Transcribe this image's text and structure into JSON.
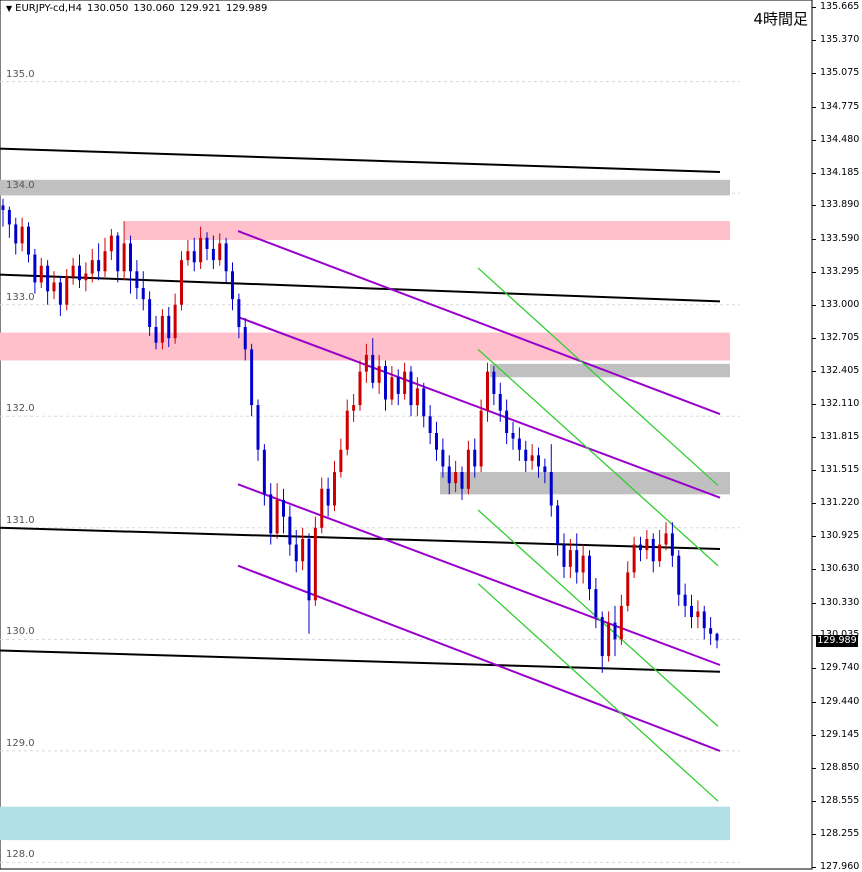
{
  "window": {
    "symbol_info": "EURJPY-cd,H4",
    "ohlc": [
      "130.050",
      "130.060",
      "129.921",
      "129.989"
    ],
    "timeframe_label": "4時間足",
    "current_price": "129.989"
  },
  "colors": {
    "background": "#ffffff",
    "bull_candle": "#cc0000",
    "bear_candle": "#0000cc",
    "channel_purple": "#9900cc",
    "channel_green": "#33cc33",
    "trend_black": "#000000",
    "zone_pink": "#ffc0cb",
    "zone_gray": "#c0c0c0",
    "zone_cyan": "#b0dfe5",
    "grid": "#d8d8d8"
  },
  "price_axis": {
    "ticks": [
      "135.665",
      "135.370",
      "135.075",
      "134.775",
      "134.480",
      "134.185",
      "133.890",
      "133.590",
      "133.295",
      "133.000",
      "132.705",
      "132.405",
      "132.110",
      "131.815",
      "131.515",
      "131.220",
      "130.925",
      "130.630",
      "130.330",
      "130.035",
      "129.740",
      "129.440",
      "129.145",
      "128.850",
      "128.555",
      "128.255",
      "127.960"
    ]
  },
  "level_labels": [
    "135.0",
    "134.0",
    "133.0",
    "132.0",
    "131.0",
    "130.0",
    "129.0",
    "128.0"
  ],
  "chart_data": {
    "type": "candlestick",
    "symbol": "EURJPY-cd",
    "timeframe": "H4",
    "ylim": [
      127.95,
      135.75
    ],
    "grid": true,
    "zones": [
      {
        "type": "resistance",
        "color": "pink",
        "from": 133.58,
        "to": 133.75
      },
      {
        "type": "resistance",
        "color": "pink",
        "from": 132.5,
        "to": 132.75
      },
      {
        "type": "level",
        "color": "gray",
        "from": 133.98,
        "to": 134.12
      },
      {
        "type": "level",
        "color": "gray",
        "from": 132.35,
        "to": 132.47
      },
      {
        "type": "level",
        "color": "gray",
        "from": 131.3,
        "to": 131.5
      },
      {
        "type": "support",
        "color": "cyan",
        "from": 128.2,
        "to": 128.5
      }
    ],
    "candles": [
      [
        133.89,
        133.85,
        133.95,
        133.7
      ],
      [
        133.85,
        133.72,
        133.88,
        133.6
      ],
      [
        133.72,
        133.55,
        133.78,
        133.45
      ],
      [
        133.55,
        133.7,
        133.78,
        133.48
      ],
      [
        133.7,
        133.45,
        133.74,
        133.38
      ],
      [
        133.45,
        133.2,
        133.5,
        133.1
      ],
      [
        133.2,
        133.35,
        133.42,
        133.15
      ],
      [
        133.35,
        133.12,
        133.4,
        133.0
      ],
      [
        133.12,
        133.2,
        133.3,
        133.05
      ],
      [
        133.2,
        133.0,
        133.26,
        132.9
      ],
      [
        133.0,
        133.25,
        133.32,
        132.95
      ],
      [
        133.25,
        133.35,
        133.42,
        133.18
      ],
      [
        133.35,
        133.22,
        133.45,
        133.15
      ],
      [
        133.22,
        133.28,
        133.38,
        133.12
      ],
      [
        133.28,
        133.4,
        133.5,
        133.2
      ],
      [
        133.4,
        133.3,
        133.55,
        133.22
      ],
      [
        133.3,
        133.48,
        133.6,
        133.25
      ],
      [
        133.48,
        133.62,
        133.68,
        133.4
      ],
      [
        133.62,
        133.3,
        133.65,
        133.2
      ],
      [
        133.3,
        133.55,
        133.75,
        133.22
      ],
      [
        133.55,
        133.3,
        133.62,
        133.1
      ],
      [
        133.3,
        133.15,
        133.4,
        133.05
      ],
      [
        133.15,
        133.05,
        133.3,
        132.95
      ],
      [
        133.05,
        132.8,
        133.12,
        132.72
      ],
      [
        132.8,
        132.66,
        132.9,
        132.6
      ],
      [
        132.66,
        132.9,
        132.96,
        132.6
      ],
      [
        132.9,
        132.7,
        132.98,
        132.62
      ],
      [
        132.7,
        133.0,
        133.1,
        132.65
      ],
      [
        133.0,
        133.4,
        133.48,
        132.95
      ],
      [
        133.4,
        133.48,
        133.58,
        133.35
      ],
      [
        133.48,
        133.38,
        133.6,
        133.3
      ],
      [
        133.38,
        133.6,
        133.7,
        133.32
      ],
      [
        133.6,
        133.5,
        133.65,
        133.4
      ],
      [
        133.5,
        133.4,
        133.62,
        133.32
      ],
      [
        133.4,
        133.55,
        133.64,
        133.35
      ],
      [
        133.55,
        133.3,
        133.6,
        133.2
      ],
      [
        133.3,
        133.05,
        133.38,
        132.95
      ],
      [
        133.05,
        132.8,
        133.1,
        132.7
      ],
      [
        132.8,
        132.6,
        132.88,
        132.5
      ],
      [
        132.6,
        132.1,
        132.65,
        132.0
      ],
      [
        132.1,
        131.7,
        132.15,
        131.6
      ],
      [
        131.7,
        131.3,
        131.75,
        131.2
      ],
      [
        131.3,
        130.95,
        131.4,
        130.85
      ],
      [
        130.95,
        131.25,
        131.4,
        130.9
      ],
      [
        131.25,
        131.1,
        131.35,
        130.95
      ],
      [
        131.1,
        130.85,
        131.2,
        130.75
      ],
      [
        130.85,
        130.7,
        130.98,
        130.6
      ],
      [
        130.7,
        130.9,
        131.0,
        130.62
      ],
      [
        130.9,
        130.35,
        130.95,
        130.05
      ],
      [
        130.35,
        131.0,
        131.1,
        130.3
      ],
      [
        131.0,
        131.35,
        131.45,
        130.95
      ],
      [
        131.35,
        131.2,
        131.45,
        131.1
      ],
      [
        131.2,
        131.5,
        131.6,
        131.15
      ],
      [
        131.5,
        131.7,
        131.8,
        131.45
      ],
      [
        131.7,
        132.05,
        132.15,
        131.65
      ],
      [
        132.05,
        132.1,
        132.2,
        131.95
      ],
      [
        132.1,
        132.4,
        132.5,
        132.05
      ],
      [
        132.4,
        132.55,
        132.65,
        132.3
      ],
      [
        132.55,
        132.3,
        132.7,
        132.25
      ],
      [
        132.3,
        132.45,
        132.55,
        132.2
      ],
      [
        132.45,
        132.15,
        132.5,
        132.05
      ],
      [
        132.15,
        132.35,
        132.45,
        132.1
      ],
      [
        132.35,
        132.2,
        132.42,
        132.1
      ],
      [
        132.2,
        132.4,
        132.48,
        132.15
      ],
      [
        132.4,
        132.1,
        132.45,
        132.0
      ],
      [
        132.1,
        132.25,
        132.35,
        132.0
      ],
      [
        132.25,
        132.0,
        132.3,
        131.9
      ],
      [
        132.0,
        131.85,
        132.1,
        131.75
      ],
      [
        131.85,
        131.7,
        131.95,
        131.6
      ],
      [
        131.7,
        131.55,
        131.8,
        131.45
      ],
      [
        131.55,
        131.4,
        131.65,
        131.3
      ],
      [
        131.4,
        131.5,
        131.6,
        131.32
      ],
      [
        131.5,
        131.35,
        131.55,
        131.25
      ],
      [
        131.35,
        131.7,
        131.78,
        131.3
      ],
      [
        131.7,
        131.55,
        131.8,
        131.45
      ],
      [
        131.55,
        132.05,
        132.15,
        131.5
      ],
      [
        132.05,
        132.4,
        132.48,
        131.95
      ],
      [
        132.4,
        132.2,
        132.45,
        132.1
      ],
      [
        132.2,
        132.05,
        132.3,
        131.95
      ],
      [
        132.05,
        131.85,
        132.15,
        131.75
      ],
      [
        131.85,
        131.8,
        131.95,
        131.7
      ],
      [
        131.8,
        131.7,
        131.9,
        131.6
      ],
      [
        131.7,
        131.6,
        131.78,
        131.5
      ],
      [
        131.6,
        131.65,
        131.75,
        131.52
      ],
      [
        131.65,
        131.55,
        131.72,
        131.45
      ],
      [
        131.55,
        131.5,
        131.62,
        131.4
      ],
      [
        131.5,
        131.2,
        131.75,
        131.1
      ],
      [
        131.2,
        130.85,
        131.25,
        130.75
      ],
      [
        130.85,
        130.65,
        130.95,
        130.55
      ],
      [
        130.65,
        130.8,
        130.9,
        130.55
      ],
      [
        130.8,
        130.6,
        130.95,
        130.5
      ],
      [
        130.6,
        130.75,
        130.85,
        130.5
      ],
      [
        130.75,
        130.45,
        130.8,
        130.35
      ],
      [
        130.45,
        130.2,
        130.55,
        130.1
      ],
      [
        130.2,
        129.85,
        130.25,
        129.7
      ],
      [
        129.85,
        130.15,
        130.25,
        129.8
      ],
      [
        130.15,
        130.0,
        130.3,
        129.85
      ],
      [
        130.0,
        130.3,
        130.4,
        129.95
      ],
      [
        130.3,
        130.6,
        130.7,
        130.25
      ],
      [
        130.6,
        130.85,
        130.92,
        130.55
      ],
      [
        130.85,
        130.8,
        130.92,
        130.7
      ],
      [
        130.8,
        130.9,
        130.98,
        130.72
      ],
      [
        130.9,
        130.7,
        130.95,
        130.6
      ],
      [
        130.7,
        130.85,
        130.98,
        130.65
      ],
      [
        130.85,
        130.95,
        131.05,
        130.8
      ],
      [
        130.95,
        130.75,
        131.05,
        130.65
      ],
      [
        130.75,
        130.4,
        130.8,
        130.3
      ],
      [
        130.4,
        130.3,
        130.5,
        130.2
      ],
      [
        130.3,
        130.2,
        130.4,
        130.1
      ],
      [
        130.2,
        130.25,
        130.35,
        130.1
      ],
      [
        130.25,
        130.1,
        130.3,
        130.0
      ],
      [
        130.1,
        130.05,
        130.2,
        129.95
      ],
      [
        130.05,
        129.99,
        130.06,
        129.92
      ]
    ],
    "trendlines": [
      {
        "color": "black",
        "from": [
          0,
          134.4
        ],
        "to": [
          1,
          134.19
        ]
      },
      {
        "color": "black",
        "from": [
          0,
          133.27
        ],
        "to": [
          1,
          133.03
        ]
      },
      {
        "color": "black",
        "from": [
          0,
          131.0
        ],
        "to": [
          1,
          130.81
        ]
      },
      {
        "color": "black",
        "from": [
          0,
          129.9
        ],
        "to": [
          1,
          129.71
        ]
      }
    ],
    "channels": [
      {
        "color": "purple",
        "lines": [
          [
            133.66,
            132.02
          ],
          [
            132.89,
            131.27
          ],
          [
            131.39,
            129.77
          ],
          [
            130.66,
            129.0
          ]
        ]
      },
      {
        "color": "green",
        "lines": [
          [
            133.33,
            131.38
          ],
          [
            132.6,
            130.66
          ],
          [
            131.16,
            129.22
          ],
          [
            130.5,
            128.55
          ]
        ]
      }
    ]
  }
}
